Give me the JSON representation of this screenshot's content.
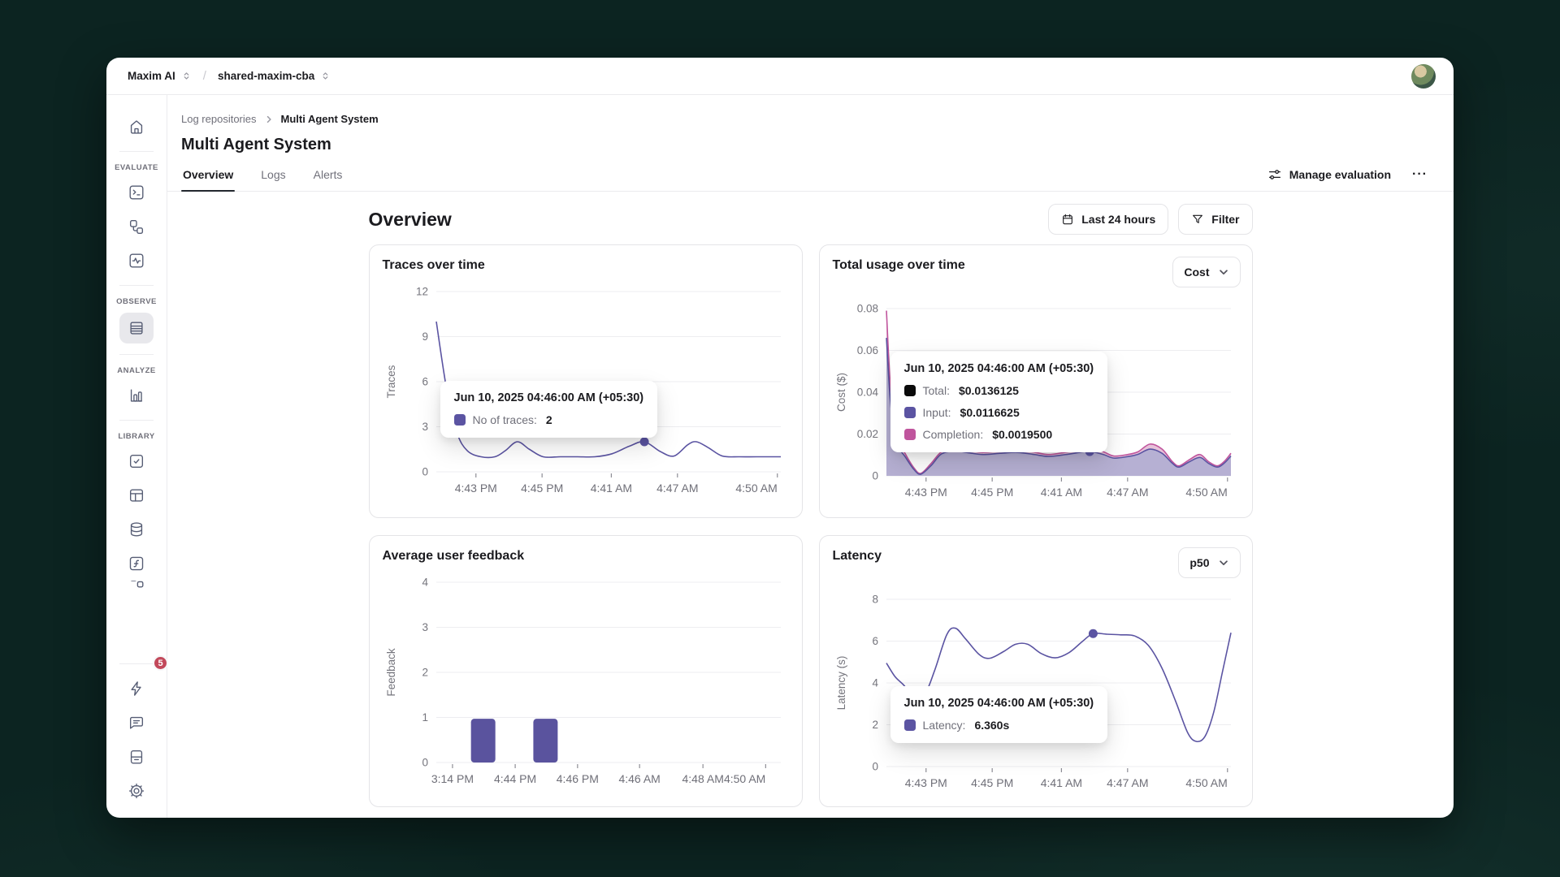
{
  "window": {
    "workspace": "Maxim AI",
    "separator": "/",
    "project": "shared-maxim-cba"
  },
  "sidebar": {
    "sections": [
      {
        "label": "EVALUATE"
      },
      {
        "label": "OBSERVE"
      },
      {
        "label": "ANALYZE"
      },
      {
        "label": "LIBRARY"
      }
    ],
    "badge_count": "5"
  },
  "breadcrumb": {
    "parent": "Log repositories",
    "current": "Multi Agent System"
  },
  "page": {
    "title": "Multi Agent System",
    "tabs": [
      {
        "label": "Overview"
      },
      {
        "label": "Logs"
      },
      {
        "label": "Alerts"
      }
    ],
    "manage_evaluation": "Manage evaluation",
    "more": "···"
  },
  "overview": {
    "heading": "Overview",
    "time_range": "Last 24 hours",
    "filter": "Filter"
  },
  "chart_data": [
    {
      "type": "line",
      "title": "Traces over time",
      "ylabel": "Traces",
      "ylim": [
        0,
        12
      ],
      "grid": true,
      "legend_position": "none",
      "yticks": [
        {
          "v": 0,
          "label": "0"
        },
        {
          "v": 3,
          "label": "3"
        },
        {
          "v": 6,
          "label": "6"
        },
        {
          "v": 9,
          "label": "9"
        },
        {
          "v": 12,
          "label": "12"
        }
      ],
      "xticks": [
        {
          "pos": 0.115,
          "label": "4:43 PM"
        },
        {
          "pos": 0.307,
          "label": "4:45 PM"
        },
        {
          "pos": 0.508,
          "label": "4:41 AM"
        },
        {
          "pos": 0.7,
          "label": "4:47 AM"
        },
        {
          "pos": 0.99,
          "label": "4:50 AM"
        }
      ],
      "series": [
        {
          "name": "No of traces",
          "color": "#5b54a2",
          "points": [
            [
              0,
              10
            ],
            [
              0.03,
              5.5
            ],
            [
              0.06,
              2.6
            ],
            [
              0.09,
              1.4
            ],
            [
              0.13,
              1
            ],
            [
              0.17,
              1
            ],
            [
              0.2,
              1.4
            ],
            [
              0.235,
              2
            ],
            [
              0.27,
              1.5
            ],
            [
              0.31,
              1
            ],
            [
              0.36,
              1
            ],
            [
              0.41,
              1
            ],
            [
              0.46,
              1
            ],
            [
              0.51,
              1.2
            ],
            [
              0.56,
              1.7
            ],
            [
              0.604,
              2
            ],
            [
              0.65,
              1.35
            ],
            [
              0.69,
              1.05
            ],
            [
              0.73,
              1.8
            ],
            [
              0.755,
              2
            ],
            [
              0.79,
              1.6
            ],
            [
              0.83,
              1.05
            ],
            [
              0.88,
              1
            ],
            [
              0.93,
              1
            ],
            [
              1,
              1
            ]
          ]
        }
      ],
      "marker": {
        "series": 0,
        "x": 0.604,
        "y": 2
      },
      "tooltip": {
        "title": "Jun 10, 2025 04:46:00 AM (+05:30)",
        "rows": [
          {
            "color": "#5b54a2",
            "label": "No of traces:",
            "value": "2"
          }
        ]
      }
    },
    {
      "type": "area",
      "title": "Total usage over time",
      "ylabel": "Cost ($)",
      "dropdown": "Cost",
      "ylim": [
        0,
        0.08
      ],
      "grid": true,
      "legend_position": "none",
      "yticks": [
        {
          "v": 0,
          "label": "0"
        },
        {
          "v": 0.02,
          "label": "0.02"
        },
        {
          "v": 0.04,
          "label": "0.04"
        },
        {
          "v": 0.06,
          "label": "0.06"
        },
        {
          "v": 0.08,
          "label": "0.08"
        }
      ],
      "xticks": [
        {
          "pos": 0.115,
          "label": "4:43 PM"
        },
        {
          "pos": 0.307,
          "label": "4:45 PM"
        },
        {
          "pos": 0.508,
          "label": "4:41 AM"
        },
        {
          "pos": 0.7,
          "label": "4:47 AM"
        },
        {
          "pos": 0.99,
          "label": "4:50 AM"
        }
      ],
      "series": [
        {
          "name": "Total",
          "color": "#c0559d",
          "fill": "#e7c2d9",
          "points": [
            [
              0,
              0.079
            ],
            [
              0.012,
              0.042
            ],
            [
              0.03,
              0.019
            ],
            [
              0.055,
              0.0105
            ],
            [
              0.08,
              0.0038
            ],
            [
              0.1,
              0.0012
            ],
            [
              0.13,
              0.006
            ],
            [
              0.16,
              0.0115
            ],
            [
              0.2,
              0.013
            ],
            [
              0.24,
              0.0122
            ],
            [
              0.28,
              0.0112
            ],
            [
              0.33,
              0.012
            ],
            [
              0.38,
              0.0125
            ],
            [
              0.43,
              0.0113
            ],
            [
              0.47,
              0.0102
            ],
            [
              0.52,
              0.0113
            ],
            [
              0.56,
              0.0125
            ],
            [
              0.59,
              0.0136
            ],
            [
              0.63,
              0.0115
            ],
            [
              0.66,
              0.0095
            ],
            [
              0.7,
              0.0102
            ],
            [
              0.73,
              0.0115
            ],
            [
              0.765,
              0.0152
            ],
            [
              0.8,
              0.0128
            ],
            [
              0.83,
              0.0068
            ],
            [
              0.85,
              0.0048
            ],
            [
              0.88,
              0.0078
            ],
            [
              0.91,
              0.0102
            ],
            [
              0.935,
              0.0068
            ],
            [
              0.96,
              0.0048
            ],
            [
              0.98,
              0.0068
            ],
            [
              1,
              0.0108
            ]
          ]
        },
        {
          "name": "Input",
          "color": "#5b54a2",
          "fill": "#b6b0d3",
          "points": [
            [
              0,
              0.066
            ],
            [
              0.012,
              0.035
            ],
            [
              0.03,
              0.016
            ],
            [
              0.055,
              0.009
            ],
            [
              0.08,
              0.003
            ],
            [
              0.1,
              0.0008
            ],
            [
              0.13,
              0.005
            ],
            [
              0.16,
              0.0105
            ],
            [
              0.2,
              0.0118
            ],
            [
              0.24,
              0.011
            ],
            [
              0.28,
              0.0102
            ],
            [
              0.33,
              0.0108
            ],
            [
              0.38,
              0.0112
            ],
            [
              0.43,
              0.0102
            ],
            [
              0.47,
              0.0093
            ],
            [
              0.52,
              0.0102
            ],
            [
              0.56,
              0.0112
            ],
            [
              0.59,
              0.0117
            ],
            [
              0.63,
              0.0102
            ],
            [
              0.66,
              0.0085
            ],
            [
              0.7,
              0.0092
            ],
            [
              0.73,
              0.0103
            ],
            [
              0.765,
              0.0128
            ],
            [
              0.8,
              0.0108
            ],
            [
              0.83,
              0.006
            ],
            [
              0.85,
              0.0042
            ],
            [
              0.88,
              0.0068
            ],
            [
              0.91,
              0.0088
            ],
            [
              0.935,
              0.006
            ],
            [
              0.96,
              0.0042
            ],
            [
              0.98,
              0.006
            ],
            [
              1,
              0.0095
            ]
          ]
        }
      ],
      "marker": {
        "series": 1,
        "x": 0.59,
        "y": 0.0116
      },
      "tooltip": {
        "title": "Jun 10, 2025 04:46:00 AM (+05:30)",
        "rows": [
          {
            "color": "#0a0a0a",
            "label": "Total:",
            "value": "$0.0136125"
          },
          {
            "color": "#5b54a2",
            "label": "Input:",
            "value": "$0.0116625"
          },
          {
            "color": "#c0559d",
            "label": "Completion:",
            "value": "$0.0019500"
          }
        ]
      }
    },
    {
      "type": "bar",
      "title": "Average user feedback",
      "ylabel": "Feedback",
      "ylim": [
        0,
        4
      ],
      "grid": true,
      "legend_position": "none",
      "bar_color": "#5a539e",
      "yticks": [
        {
          "v": 0,
          "label": "0"
        },
        {
          "v": 1,
          "label": "1"
        },
        {
          "v": 2,
          "label": "2"
        },
        {
          "v": 3,
          "label": "3"
        },
        {
          "v": 4,
          "label": "4"
        }
      ],
      "xticks": [
        {
          "pos": 0.047,
          "label": "3:14 PM"
        },
        {
          "pos": 0.229,
          "label": "4:44 PM"
        },
        {
          "pos": 0.41,
          "label": "4:46 PM"
        },
        {
          "pos": 0.59,
          "label": "4:46 AM"
        },
        {
          "pos": 0.774,
          "label": "4:48 AM"
        },
        {
          "pos": 0.956,
          "label": "4:50 AM"
        }
      ],
      "bars": [
        {
          "pos": 0.136,
          "value": 0.97
        },
        {
          "pos": 0.317,
          "value": 0.97
        }
      ]
    },
    {
      "type": "line",
      "title": "Latency",
      "ylabel": "Latency (s)",
      "dropdown": "p50",
      "ylim": [
        0,
        8
      ],
      "grid": true,
      "legend_position": "none",
      "yticks": [
        {
          "v": 0,
          "label": "0"
        },
        {
          "v": 2,
          "label": "2"
        },
        {
          "v": 4,
          "label": "4"
        },
        {
          "v": 6,
          "label": "6"
        },
        {
          "v": 8,
          "label": "8"
        }
      ],
      "xticks": [
        {
          "pos": 0.115,
          "label": "4:43 PM"
        },
        {
          "pos": 0.307,
          "label": "4:45 PM"
        },
        {
          "pos": 0.508,
          "label": "4:41 AM"
        },
        {
          "pos": 0.7,
          "label": "4:47 AM"
        },
        {
          "pos": 0.99,
          "label": "4:50 AM"
        }
      ],
      "series": [
        {
          "name": "Latency",
          "color": "#5b54a2",
          "points": [
            [
              0,
              4.95
            ],
            [
              0.025,
              4.3
            ],
            [
              0.05,
              3.9
            ],
            [
              0.08,
              3.3
            ],
            [
              0.11,
              3.4
            ],
            [
              0.14,
              4.6
            ],
            [
              0.175,
              6.3
            ],
            [
              0.2,
              6.62
            ],
            [
              0.23,
              6.1
            ],
            [
              0.27,
              5.35
            ],
            [
              0.3,
              5.18
            ],
            [
              0.34,
              5.5
            ],
            [
              0.375,
              5.85
            ],
            [
              0.41,
              5.85
            ],
            [
              0.45,
              5.4
            ],
            [
              0.49,
              5.2
            ],
            [
              0.53,
              5.45
            ],
            [
              0.57,
              6.0
            ],
            [
              0.6,
              6.36
            ],
            [
              0.64,
              6.33
            ],
            [
              0.68,
              6.3
            ],
            [
              0.72,
              6.25
            ],
            [
              0.76,
              5.8
            ],
            [
              0.8,
              4.7
            ],
            [
              0.84,
              3.1
            ],
            [
              0.875,
              1.6
            ],
            [
              0.9,
              1.2
            ],
            [
              0.925,
              1.45
            ],
            [
              0.95,
              2.6
            ],
            [
              0.975,
              4.5
            ],
            [
              1,
              6.4
            ]
          ]
        }
      ],
      "marker": {
        "series": 0,
        "x": 0.6,
        "y": 6.36
      },
      "tooltip": {
        "title": "Jun 10, 2025 04:46:00 AM (+05:30)",
        "rows": [
          {
            "color": "#5b54a2",
            "label": "Latency:",
            "value": "6.360s"
          }
        ]
      }
    }
  ]
}
